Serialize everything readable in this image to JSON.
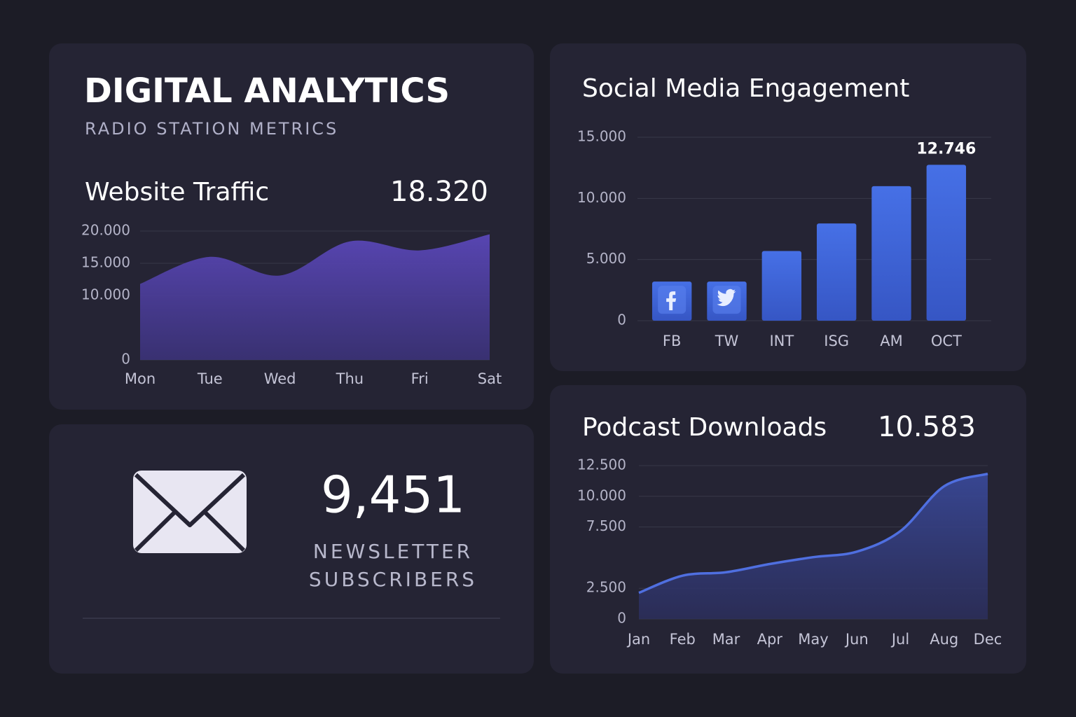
{
  "header": {
    "title": "DIGITAL ANALYTICS",
    "subtitle": "RADIO STATION METRICS"
  },
  "chart_data": [
    {
      "type": "area",
      "title": "Website Traffic",
      "summary": "18.320",
      "categories": [
        "Mon",
        "Tue",
        "Wed",
        "Thu",
        "Fri",
        "Sat"
      ],
      "values": [
        11800,
        16000,
        13100,
        18400,
        17000,
        19500
      ],
      "color": "#5a47b8",
      "ylim": [
        0,
        20000
      ],
      "yticks": [
        0,
        {
          "value": 10000,
          "label": "10.000"
        },
        {
          "value": 15000,
          "label": "15.000"
        },
        {
          "value": 20000,
          "label": "20.000"
        }
      ],
      "grid": true
    },
    {
      "type": "bar",
      "title": "Social Media Engagement",
      "categories": [
        "FB",
        "TW",
        "INT",
        "ISG",
        "AM",
        "OCT"
      ],
      "values": [
        3200,
        3200,
        5700,
        7950,
        11000,
        12746
      ],
      "value_labels": [
        null,
        null,
        null,
        null,
        null,
        "12.746"
      ],
      "color": "#3f64d8",
      "ylim": [
        0,
        15000
      ],
      "yticks": [
        0,
        {
          "value": 5000,
          "label": "5.000"
        },
        {
          "value": 10000,
          "label": "10.000"
        },
        {
          "value": 15000,
          "label": "15.000"
        }
      ],
      "grid": true
    },
    {
      "type": "area",
      "title": "Podcast Downloads",
      "summary": "10.583",
      "categories": [
        "Jan",
        "Feb",
        "Mar",
        "Apr",
        "May",
        "Jun",
        "Jul",
        "Aug",
        "Dec"
      ],
      "values": [
        2130,
        3530,
        3810,
        4480,
        5040,
        5490,
        7170,
        10820,
        11830
      ],
      "color": "#4f6fe0",
      "ylim": [
        0,
        12500
      ],
      "yticks": [
        0,
        {
          "value": 2500,
          "label": "2.500"
        },
        {
          "value": 7500,
          "label": "7.500"
        },
        {
          "value": 10000,
          "label": "10.000"
        },
        {
          "value": 12500,
          "label": "12.500"
        }
      ],
      "grid": true
    }
  ],
  "newsletter": {
    "count": "9,451",
    "label": "NEWSLETTER SUBSCRIBERS"
  }
}
